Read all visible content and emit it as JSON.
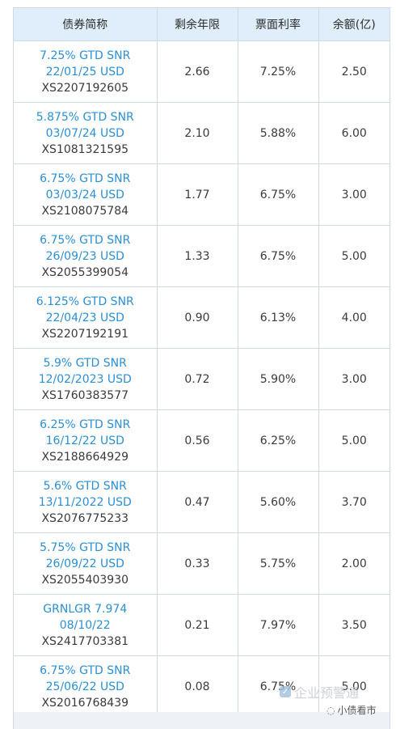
{
  "table": {
    "headers": [
      "债券简称",
      "剩余年限",
      "票面利率",
      "余额(亿)"
    ],
    "rows": [
      {
        "name_line1": "7.25% GTD SNR",
        "name_line2": "22/01/25 USD",
        "isin": "XS2207192605",
        "years": "2.66",
        "coupon": "7.25%",
        "amount": "2.50"
      },
      {
        "name_line1": "5.875% GTD SNR",
        "name_line2": "03/07/24 USD",
        "isin": "XS1081321595",
        "years": "2.10",
        "coupon": "5.88%",
        "amount": "6.00"
      },
      {
        "name_line1": "6.75% GTD SNR",
        "name_line2": "03/03/24 USD",
        "isin": "XS2108075784",
        "years": "1.77",
        "coupon": "6.75%",
        "amount": "3.00"
      },
      {
        "name_line1": "6.75% GTD SNR",
        "name_line2": "26/09/23 USD",
        "isin": "XS2055399054",
        "years": "1.33",
        "coupon": "6.75%",
        "amount": "5.00"
      },
      {
        "name_line1": "6.125% GTD SNR",
        "name_line2": "22/04/23 USD",
        "isin": "XS2207192191",
        "years": "0.90",
        "coupon": "6.13%",
        "amount": "4.00"
      },
      {
        "name_line1": "5.9% GTD SNR",
        "name_line2": "12/02/2023 USD",
        "isin": "XS1760383577",
        "years": "0.72",
        "coupon": "5.90%",
        "amount": "3.00"
      },
      {
        "name_line1": "6.25% GTD SNR",
        "name_line2": "16/12/22 USD",
        "isin": "XS2188664929",
        "years": "0.56",
        "coupon": "6.25%",
        "amount": "5.00"
      },
      {
        "name_line1": "5.6% GTD SNR",
        "name_line2": "13/11/2022 USD",
        "isin": "XS2076775233",
        "years": "0.47",
        "coupon": "5.60%",
        "amount": "3.70"
      },
      {
        "name_line1": "5.75% GTD SNR",
        "name_line2": "26/09/22 USD",
        "isin": "XS2055403930",
        "years": "0.33",
        "coupon": "5.75%",
        "amount": "2.00"
      },
      {
        "name_line1": "GRNLGR 7.974",
        "name_line2": "08/10/22",
        "isin": "XS2417703381",
        "years": "0.21",
        "coupon": "7.97%",
        "amount": "3.50"
      },
      {
        "name_line1": "6.75% GTD SNR",
        "name_line2": "25/06/22 USD",
        "isin": "XS2016768439",
        "years": "0.08",
        "coupon": "6.75%",
        "amount": "5.00"
      }
    ]
  },
  "watermarks": {
    "platform": "企业预警通",
    "account": "小债看市"
  },
  "colors": {
    "header_bg": "#dfeefa",
    "link": "#2b8fd6",
    "border": "#cfd8e3"
  }
}
